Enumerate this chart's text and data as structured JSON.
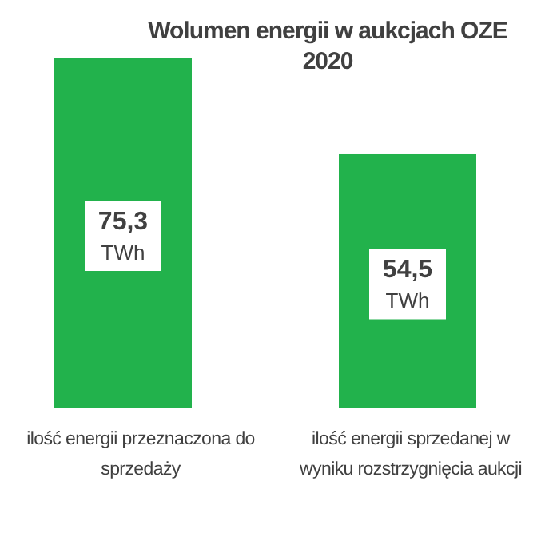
{
  "chart_data": {
    "type": "bar",
    "title": "Wolumen energii w aukcjach OZE 2020",
    "categories": [
      "ilość energii przeznaczona do sprzedaży",
      "ilość energii sprzedanej w wyniku rozstrzygnięcia aukcji"
    ],
    "values": [
      75.3,
      54.5
    ],
    "value_labels": [
      "75,3 TWh",
      "54,5 TWh"
    ],
    "color": "#22b24c"
  }
}
